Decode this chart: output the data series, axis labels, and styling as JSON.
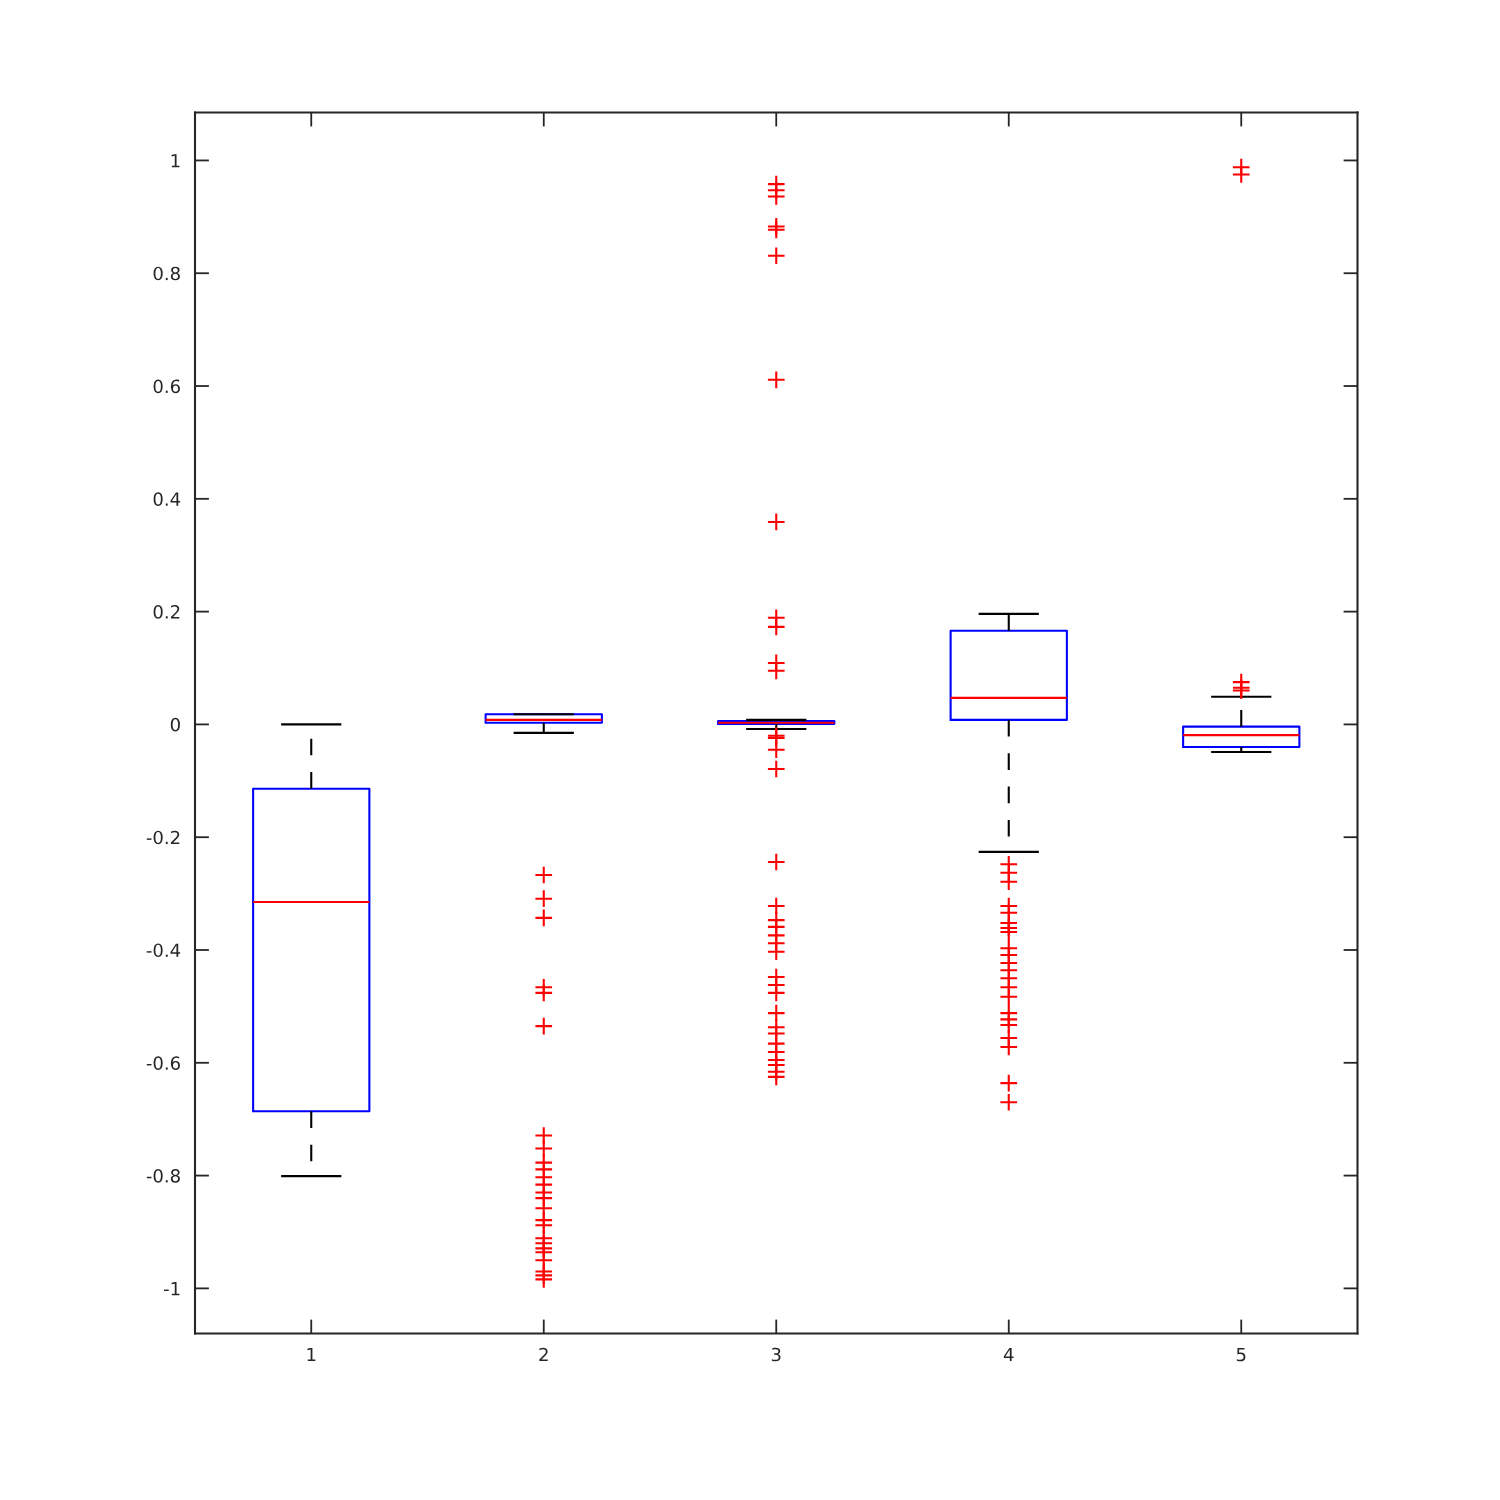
{
  "chart_data": {
    "type": "box",
    "categories": [
      "1",
      "2",
      "3",
      "4",
      "5"
    ],
    "ylim": [
      -1.08,
      1.085
    ],
    "yticks": [
      -1,
      -0.8,
      -0.6,
      -0.4,
      -0.2,
      0,
      0.2,
      0.4,
      0.6,
      0.8,
      1
    ],
    "grid": false,
    "series": [
      {
        "color": "#0000ff",
        "boxes": [
          {
            "low": -0.801,
            "q1": -0.686,
            "median": -0.315,
            "q3": -0.114,
            "high": 0
          },
          {
            "low": -0.015,
            "q1": 0.003,
            "median": 0.008,
            "q3": 0.018,
            "high": 0.018,
            "outliers": [
              -0.267,
              -0.309,
              -0.343,
              -0.466,
              -0.476,
              -0.535,
              -0.729,
              -0.752,
              -0.777,
              -0.789,
              -0.803,
              -0.816,
              -0.83,
              -0.84,
              -0.858,
              -0.879,
              -0.888,
              -0.911,
              -0.92,
              -0.929,
              -0.936,
              -0.95,
              -0.97,
              -0.977,
              -0.984
            ]
          },
          {
            "low": -0.008,
            "q1": 0.001,
            "median": 0.003,
            "q3": 0.006,
            "high": 0.008,
            "outliers": [
              0.958,
              0.947,
              0.936,
              0.883,
              0.877,
              0.831,
              0.611,
              0.359,
              0.189,
              0.173,
              0.109,
              0.095,
              -0.02,
              -0.024,
              -0.045,
              -0.079,
              -0.244,
              -0.322,
              -0.347,
              -0.359,
              -0.374,
              -0.388,
              -0.403,
              -0.448,
              -0.462,
              -0.476,
              -0.512,
              -0.537,
              -0.548,
              -0.566,
              -0.581,
              -0.595,
              -0.604,
              -0.616,
              -0.625
            ]
          },
          {
            "low": -0.226,
            "q1": 0.008,
            "median": 0.047,
            "q3": 0.166,
            "high": 0.196,
            "outliers": [
              -0.248,
              -0.263,
              -0.279,
              -0.322,
              -0.334,
              -0.352,
              -0.361,
              -0.368,
              -0.397,
              -0.409,
              -0.423,
              -0.436,
              -0.45,
              -0.466,
              -0.483,
              -0.512,
              -0.523,
              -0.533,
              -0.556,
              -0.572,
              -0.636,
              -0.67
            ]
          },
          {
            "low": -0.049,
            "q1": -0.04,
            "median": -0.019,
            "q3": -0.004,
            "high": 0.049,
            "outliers": [
              0.988,
              0.975,
              0.075,
              0.065,
              0.06
            ]
          }
        ]
      }
    ]
  }
}
